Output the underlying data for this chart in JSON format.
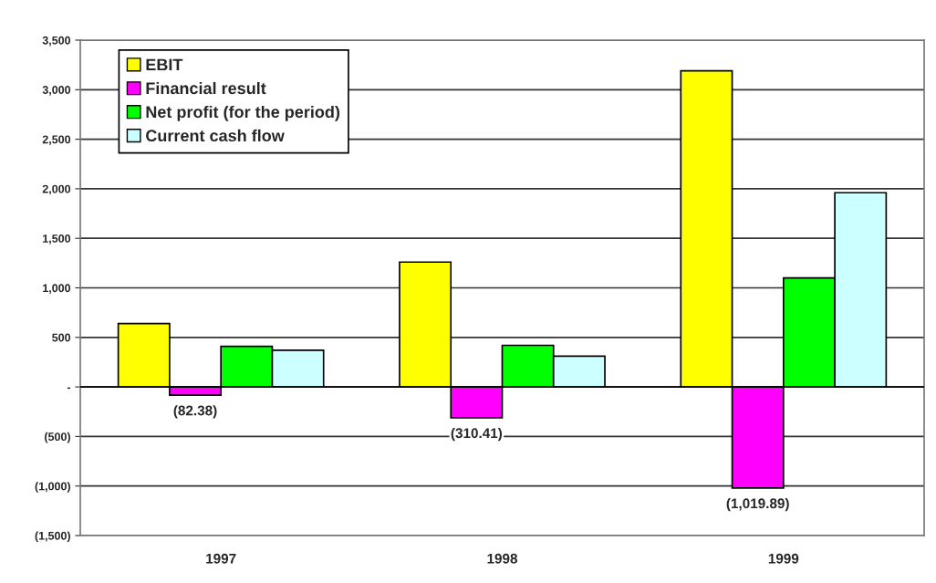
{
  "chart_data": {
    "type": "bar",
    "categories": [
      "1997",
      "1998",
      "1999"
    ],
    "series": [
      {
        "name": "EBIT",
        "color": "#ffff00",
        "values": [
          640,
          1260,
          3190
        ]
      },
      {
        "name": "Financial result",
        "color": "#ff00ff",
        "values": [
          -82.38,
          -310.41,
          -1019.89
        ],
        "value_labels": [
          "(82.38)",
          "(310.41)",
          "(1,019.89)"
        ]
      },
      {
        "name": "Net profit (for the period)",
        "color": "#00ff00",
        "values": [
          410,
          420,
          1100
        ]
      },
      {
        "name": "Current cash flow",
        "color": "#ccffff",
        "values": [
          370,
          310,
          1960
        ]
      }
    ],
    "ylim": [
      -1500,
      3500
    ],
    "yticks": [
      {
        "value": -1500,
        "label": "(1,500)"
      },
      {
        "value": -1000,
        "label": "(1,000)"
      },
      {
        "value": -500,
        "label": "(500)"
      },
      {
        "value": 0,
        "label": "-"
      },
      {
        "value": 500,
        "label": "500"
      },
      {
        "value": 1000,
        "label": "1,000"
      },
      {
        "value": 1500,
        "label": "1,500"
      },
      {
        "value": 2000,
        "label": "2,000"
      },
      {
        "value": 2500,
        "label": "2,500"
      },
      {
        "value": 3000,
        "label": "3,000"
      },
      {
        "value": 3500,
        "label": "3,500"
      }
    ],
    "grid": "y",
    "legend": "top left"
  }
}
